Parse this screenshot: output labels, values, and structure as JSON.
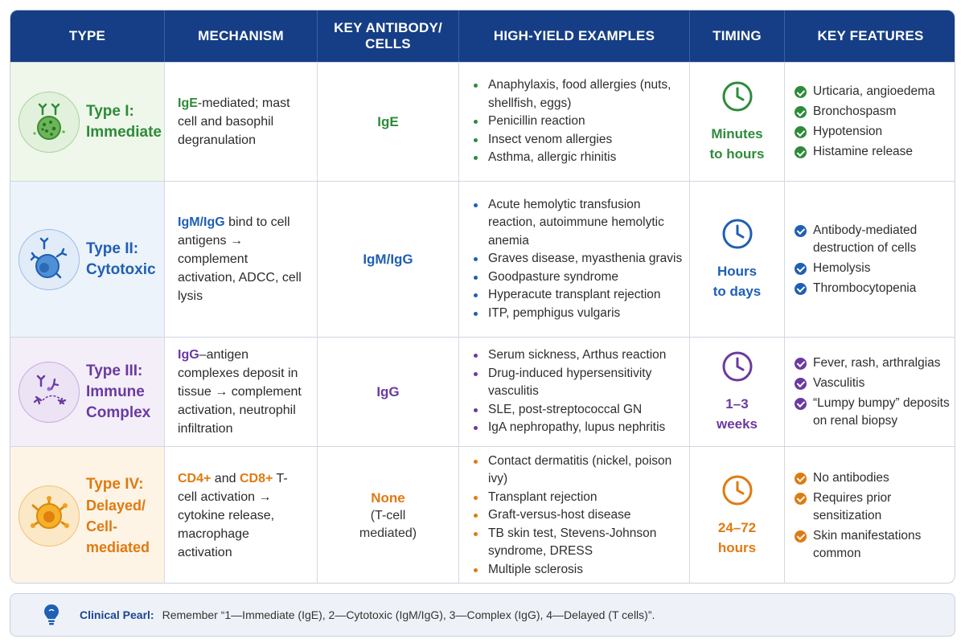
{
  "colors": {
    "header_bg": "#163e86",
    "type1": "#2e8b3a",
    "type2": "#1f5fb4",
    "type3": "#6a3aa0",
    "type4": "#e07a10",
    "type1_bg": "#eef7ea",
    "type2_bg": "#edf3fb",
    "type3_bg": "#f3eef8",
    "type4_bg": "#fdf4e6"
  },
  "headers": {
    "type": "TYPE",
    "mechanism": "MECHANISM",
    "key_antibody": "KEY ANTIBODY/ CELLS",
    "examples": "HIGH-YIELD EXAMPLES",
    "timing": "TIMING",
    "key_features": "KEY FEATURES"
  },
  "rows": [
    {
      "type_title": "Type I:",
      "type_sub": "Immediate",
      "icon": "mast-cell-icon",
      "mech_key": "IgE",
      "mech_rest": "-mediated; mast cell and basophil degranulation",
      "antibody": "IgE",
      "antibody_sub": "",
      "examples": [
        "Anaphylaxis, food allergies (nuts, shellfish, eggs)",
        "Penicillin reaction",
        "Insect venom allergies",
        "Asthma, allergic rhinitis"
      ],
      "timing_line1": "Minutes",
      "timing_line2": "to hours",
      "features": [
        "Urticaria, angioedema",
        "Bronchospasm",
        "Hypotension",
        "Histamine release"
      ]
    },
    {
      "type_title": "Type II:",
      "type_sub": "Cytotoxic",
      "icon": "antibody-cell-icon",
      "mech_key": "IgM/IgG",
      "mech_rest": " bind to cell antigens → complement activation, ADCC, cell lysis",
      "antibody": "IgM/IgG",
      "antibody_sub": "",
      "examples": [
        "Acute hemolytic transfusion reaction, autoimmune hemolytic anemia",
        "Graves disease, myasthenia gravis",
        "Goodpasture syndrome",
        "Hyperacute transplant rejection",
        "ITP, pemphigus vulgaris"
      ],
      "timing_line1": "Hours",
      "timing_line2": "to days",
      "features": [
        "Antibody-mediated destruction of cells",
        "Hemolysis",
        "Thrombocytopenia"
      ]
    },
    {
      "type_title": "Type III:",
      "type_sub": "Immune Complex",
      "icon": "immune-complex-icon",
      "mech_key": "IgG",
      "mech_rest": "–antigen complexes deposit in tissue → complement activation, neutrophil infiltration",
      "antibody": "IgG",
      "antibody_sub": "",
      "examples": [
        "Serum sickness, Arthus reaction",
        "Drug-induced hypersensitivity vasculitis",
        "SLE, post-streptococcal GN",
        "IgA nephropathy, lupus nephritis"
      ],
      "timing_line1": "1–3",
      "timing_line2": "weeks",
      "features": [
        "Fever, rash, arthralgias",
        "Vasculitis",
        "“Lumpy bumpy” deposits on renal biopsy"
      ]
    },
    {
      "type_title": "Type IV:",
      "type_sub": "Delayed/ Cell-mediated",
      "icon": "t-cell-icon",
      "mech_key": "CD4+",
      "mech_mid": " and ",
      "mech_key2": "CD8+",
      "mech_rest": " T-cell activation → cytokine release, macrophage activation",
      "antibody": "None",
      "antibody_sub": "(T-cell mediated)",
      "examples": [
        "Contact dermatitis (nickel, poison ivy)",
        "Transplant rejection",
        "Graft-versus-host disease",
        "TB skin test, Stevens-Johnson syndrome, DRESS",
        "Multiple sclerosis"
      ],
      "timing_line1": "24–72",
      "timing_line2": "hours",
      "features": [
        "No antibodies",
        "Requires prior sensitization",
        "Skin manifestations common"
      ]
    }
  ],
  "pearl": {
    "icon": "lightbulb-icon",
    "title": "Clinical Pearl:",
    "text": "Remember “1—Immediate (IgE), 2—Cytotoxic (IgM/IgG), 3—Complex (IgG), 4—Delayed (T cells)”."
  }
}
